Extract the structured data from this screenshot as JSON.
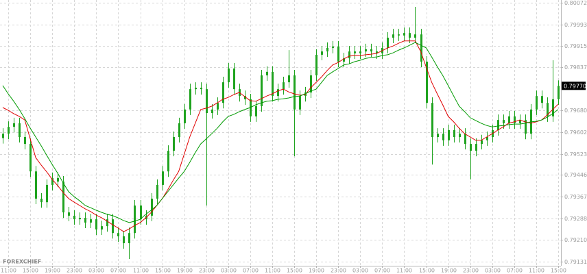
{
  "chart_data": {
    "type": "candlestick",
    "watermark": "FOREXCHIEF",
    "candle_color": "#1fa31f",
    "grid": true,
    "ylim": [
      0.79116,
      0.80082
    ],
    "yticks": [
      0.80072,
      0.79993,
      0.79915,
      0.79837,
      {
        "value": 0.7968,
        "label": "0.79680"
      },
      0.79602,
      0.79523,
      0.79446,
      0.79367,
      0.79288,
      {
        "value": 0.7921,
        "label": "0.79210"
      },
      0.79131
    ],
    "last_price": {
      "value": 0.7977,
      "label": "0.79770"
    },
    "categories": [
      null,
      "11:00",
      null,
      null,
      null,
      "15:00",
      null,
      null,
      null,
      "19:00",
      null,
      null,
      null,
      "23:00",
      null,
      null,
      null,
      "03:00",
      null,
      null,
      null,
      "07:00",
      null,
      null,
      null,
      "11:00",
      null,
      null,
      null,
      "15:00",
      null,
      null,
      null,
      "19:00",
      null,
      null,
      null,
      "23:00",
      null,
      null,
      null,
      "03:00",
      null,
      null,
      null,
      "07:00",
      null,
      null,
      null,
      "11:00",
      null,
      null,
      null,
      "15:00",
      null,
      null,
      null,
      "19:00",
      null,
      null,
      null,
      "23:00",
      null,
      null,
      null,
      "03:00",
      null,
      null,
      null,
      "07:00",
      null,
      null,
      null,
      "11:00",
      null,
      null,
      null,
      "15:00",
      null,
      null,
      null,
      "19:00",
      null,
      null,
      null,
      "23:00",
      null,
      null,
      null,
      "03:00",
      null,
      null,
      null,
      "07:00",
      null,
      null,
      null,
      "11:00",
      null,
      null,
      null,
      "15:00"
    ],
    "open": [
      0.7958,
      0.79596,
      0.79621,
      0.79634,
      0.79584,
      0.79559,
      0.79459,
      0.7936,
      0.79347,
      0.7941,
      0.79435,
      0.79422,
      0.7931,
      0.79298,
      0.79285,
      0.7929,
      0.79273,
      0.79285,
      0.79248,
      0.7926,
      0.79285,
      0.79235,
      0.79223,
      0.79198,
      0.79235,
      0.79335,
      0.79285,
      0.79298,
      0.7936,
      0.7941,
      0.79459,
      0.79534,
      0.79584,
      0.79634,
      0.79684,
      0.79758,
      0.79763,
      0.79758,
      0.79671,
      0.79684,
      0.79708,
      0.79783,
      0.79833,
      0.79758,
      0.79733,
      0.79721,
      0.79659,
      0.79696,
      0.79808,
      0.79821,
      0.79733,
      0.79758,
      0.79783,
      0.79808,
      0.79684,
      0.79733,
      0.79746,
      0.79808,
      0.79883,
      0.79895,
      0.79908,
      0.79913,
      0.79858,
      0.7987,
      0.79895,
      0.79888,
      0.79895,
      0.79903,
      0.79895,
      0.79888,
      0.79908,
      0.79945,
      0.79957,
      0.79953,
      0.79962,
      0.79945,
      0.79957,
      0.79858,
      0.79708,
      0.79584,
      0.79596,
      0.79572,
      0.79609,
      0.79584,
      0.79596,
      0.79559,
      0.79534,
      0.79559,
      0.79572,
      0.79584,
      0.79609,
      0.79646,
      0.79634,
      0.79659,
      0.79634,
      0.79646,
      0.79596,
      0.79684,
      0.79733,
      0.79708,
      0.79659,
      0.79721
    ],
    "high": [
      0.79616,
      0.79641,
      0.79654,
      0.79654,
      0.79604,
      0.79579,
      0.79479,
      0.7938,
      0.7943,
      0.79455,
      0.79455,
      0.79442,
      0.7933,
      0.79318,
      0.7931,
      0.7931,
      0.79305,
      0.79305,
      0.7928,
      0.79305,
      0.79305,
      0.79255,
      0.79243,
      0.79255,
      0.79355,
      0.79355,
      0.79318,
      0.7938,
      0.7943,
      0.79479,
      0.79554,
      0.79604,
      0.79654,
      0.79704,
      0.79778,
      0.79783,
      0.79783,
      0.79778,
      0.79704,
      0.79728,
      0.79803,
      0.79853,
      0.79853,
      0.79778,
      0.79753,
      0.79741,
      0.79716,
      0.79828,
      0.79841,
      0.79841,
      0.79778,
      0.79803,
      0.799,
      0.79828,
      0.79753,
      0.79766,
      0.79828,
      0.79903,
      0.79915,
      0.79928,
      0.79933,
      0.79933,
      0.7989,
      0.79915,
      0.79915,
      0.79915,
      0.79923,
      0.79923,
      0.79915,
      0.79928,
      0.79965,
      0.79977,
      0.79977,
      0.79982,
      0.79982,
      0.80057,
      0.79977,
      0.79878,
      0.79728,
      0.79616,
      0.79616,
      0.79629,
      0.79629,
      0.79616,
      0.79616,
      0.79579,
      0.79579,
      0.79592,
      0.79604,
      0.79629,
      0.79666,
      0.79666,
      0.79679,
      0.79679,
      0.79666,
      0.79666,
      0.79704,
      0.79753,
      0.79753,
      0.79728,
      0.79863,
      0.7979
    ],
    "low": [
      0.7956,
      0.79576,
      0.79601,
      0.79564,
      0.79539,
      0.79439,
      0.7934,
      0.79327,
      0.79327,
      0.7939,
      0.79402,
      0.7929,
      0.79278,
      0.79265,
      0.79265,
      0.79253,
      0.79253,
      0.79228,
      0.79228,
      0.7924,
      0.79215,
      0.79203,
      0.79178,
      0.79141,
      0.79215,
      0.79265,
      0.79265,
      0.79278,
      0.7934,
      0.7939,
      0.79439,
      0.79514,
      0.79564,
      0.79614,
      0.79664,
      0.79738,
      0.79738,
      0.79335,
      0.79651,
      0.79664,
      0.79688,
      0.79763,
      0.79738,
      0.79713,
      0.79701,
      0.79639,
      0.79639,
      0.79676,
      0.79788,
      0.79713,
      0.79713,
      0.79738,
      0.79763,
      0.79514,
      0.79664,
      0.79713,
      0.79726,
      0.79788,
      0.79863,
      0.79875,
      0.79888,
      0.79838,
      0.79838,
      0.7985,
      0.79868,
      0.79868,
      0.79875,
      0.79875,
      0.79868,
      0.79868,
      0.79888,
      0.79925,
      0.79933,
      0.79933,
      0.79925,
      0.79925,
      0.79838,
      0.79688,
      0.79484,
      0.79564,
      0.79552,
      0.79552,
      0.79564,
      0.79564,
      0.79539,
      0.7943,
      0.79514,
      0.79539,
      0.79552,
      0.79564,
      0.79589,
      0.79614,
      0.79614,
      0.79614,
      0.79614,
      0.79576,
      0.79576,
      0.79664,
      0.79688,
      0.79639,
      0.79639,
      0.79701
    ],
    "close": [
      0.79596,
      0.79621,
      0.79634,
      0.79584,
      0.79559,
      0.79459,
      0.7936,
      0.79347,
      0.7941,
      0.79435,
      0.79422,
      0.7931,
      0.79298,
      0.79285,
      0.7929,
      0.79273,
      0.79285,
      0.79248,
      0.7926,
      0.79285,
      0.79235,
      0.79223,
      0.79198,
      0.79235,
      0.79335,
      0.79285,
      0.79298,
      0.7936,
      0.7941,
      0.79459,
      0.79534,
      0.79584,
      0.79634,
      0.79684,
      0.79758,
      0.79763,
      0.79758,
      0.79671,
      0.79684,
      0.79708,
      0.79783,
      0.79833,
      0.79758,
      0.79733,
      0.79721,
      0.79659,
      0.79696,
      0.79808,
      0.79821,
      0.79733,
      0.79758,
      0.79783,
      0.79808,
      0.79684,
      0.79733,
      0.79746,
      0.79808,
      0.79883,
      0.79895,
      0.79908,
      0.79913,
      0.79858,
      0.7987,
      0.79895,
      0.79888,
      0.79895,
      0.79903,
      0.79895,
      0.79888,
      0.79908,
      0.79945,
      0.79957,
      0.79953,
      0.79962,
      0.79945,
      0.79957,
      0.79858,
      0.79708,
      0.79584,
      0.79596,
      0.79572,
      0.79609,
      0.79584,
      0.79596,
      0.79559,
      0.79534,
      0.79559,
      0.79572,
      0.79584,
      0.79609,
      0.79646,
      0.79634,
      0.79659,
      0.79634,
      0.79646,
      0.79596,
      0.79684,
      0.79733,
      0.79708,
      0.79659,
      0.79721,
      0.7977
    ],
    "series": [
      {
        "color": "#e00000",
        "values": [
          0.79691,
          0.79681,
          0.79669,
          0.79659,
          0.79646,
          0.79577,
          0.79509,
          0.79482,
          0.79457,
          0.7943,
          0.79407,
          0.79382,
          0.7936,
          0.79347,
          0.79335,
          0.79323,
          0.79313,
          0.793,
          0.7929,
          0.79278,
          0.79265,
          0.79253,
          0.7924,
          0.7925,
          0.79263,
          0.79273,
          0.7929,
          0.7931,
          0.79335,
          0.7936,
          0.79392,
          0.79427,
          0.79459,
          0.79522,
          0.79584,
          0.79634,
          0.79684,
          0.79689,
          0.79696,
          0.79708,
          0.79721,
          0.79728,
          0.79738,
          0.79746,
          0.79731,
          0.79716,
          0.79714,
          0.79723,
          0.79733,
          0.79741,
          0.79751,
          0.79758,
          0.79748,
          0.79741,
          0.79736,
          0.79738,
          0.79763,
          0.79783,
          0.79803,
          0.79826,
          0.79846,
          0.79855,
          0.79868,
          0.79878,
          0.7988,
          0.7988,
          0.79883,
          0.79885,
          0.79888,
          0.79898,
          0.79908,
          0.79915,
          0.79925,
          0.79933,
          0.79933,
          0.79933,
          0.79895,
          0.79838,
          0.79783,
          0.79741,
          0.79701,
          0.79659,
          0.79639,
          0.79616,
          0.79596,
          0.79584,
          0.79572,
          0.79572,
          0.79584,
          0.79596,
          0.79609,
          0.79621,
          0.79634,
          0.79639,
          0.79646,
          0.79639,
          0.79634,
          0.79639,
          0.79646,
          0.79664,
          0.79684,
          0.79703
        ]
      },
      {
        "color": "#009a00",
        "values": [
          0.79771,
          0.79741,
          0.79714,
          0.79684,
          0.79651,
          0.79616,
          0.79584,
          0.79552,
          0.79517,
          0.79484,
          0.79452,
          0.79417,
          0.79385,
          0.79367,
          0.79352,
          0.79335,
          0.79327,
          0.79318,
          0.7931,
          0.79303,
          0.79298,
          0.7929,
          0.7928,
          0.79273,
          0.79278,
          0.79285,
          0.79303,
          0.79318,
          0.79335,
          0.7936,
          0.79385,
          0.7941,
          0.79435,
          0.79459,
          0.79492,
          0.79527,
          0.79559,
          0.79577,
          0.79596,
          0.79616,
          0.79639,
          0.79659,
          0.79666,
          0.79676,
          0.79684,
          0.79691,
          0.79701,
          0.79708,
          0.79714,
          0.79716,
          0.79721,
          0.79723,
          0.79726,
          0.79731,
          0.79733,
          0.79741,
          0.79751,
          0.79758,
          0.79783,
          0.79808,
          0.79821,
          0.79833,
          0.79846,
          0.7985,
          0.79858,
          0.79863,
          0.7987,
          0.79873,
          0.79875,
          0.7988,
          0.79883,
          0.7989,
          0.799,
          0.79908,
          0.79918,
          0.79928,
          0.79918,
          0.79908,
          0.79875,
          0.7984,
          0.79808,
          0.79771,
          0.79733,
          0.79696,
          0.79676,
          0.79654,
          0.79644,
          0.79634,
          0.79626,
          0.79621,
          0.79624,
          0.79626,
          0.79629,
          0.79631,
          0.79631,
          0.79634,
          0.79639,
          0.79641,
          0.79646,
          0.79656,
          0.79669,
          0.79684
        ]
      }
    ]
  }
}
